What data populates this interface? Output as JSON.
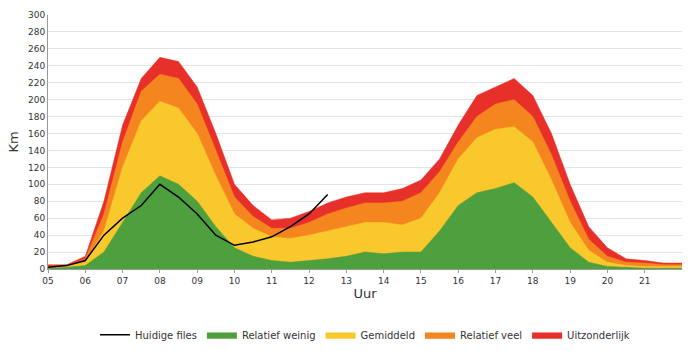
{
  "chart_data": {
    "type": "area",
    "x_label": "Uur",
    "y_label": "Km",
    "x": [
      5,
      5.5,
      6,
      6.5,
      7,
      7.5,
      8,
      8.5,
      9,
      9.5,
      10,
      10.5,
      11,
      11.5,
      12,
      12.5,
      13,
      13.5,
      14,
      14.5,
      15,
      15.5,
      16,
      16.5,
      17,
      17.5,
      18,
      18.5,
      19,
      19.5,
      20,
      20.5,
      21,
      21.5,
      22
    ],
    "xlim": [
      5,
      22
    ],
    "xticks": [
      {
        "value": 5,
        "label": "05"
      },
      {
        "value": 6,
        "label": "06"
      },
      {
        "value": 7,
        "label": "07"
      },
      {
        "value": 8,
        "label": "08"
      },
      {
        "value": 9,
        "label": "09"
      },
      {
        "value": 10,
        "label": "10"
      },
      {
        "value": 11,
        "label": "11"
      },
      {
        "value": 12,
        "label": "12"
      },
      {
        "value": 13,
        "label": "13"
      },
      {
        "value": 14,
        "label": "14"
      },
      {
        "value": 15,
        "label": "15"
      },
      {
        "value": 16,
        "label": "16"
      },
      {
        "value": 17,
        "label": "17"
      },
      {
        "value": 18,
        "label": "18"
      },
      {
        "value": 19,
        "label": "19"
      },
      {
        "value": 20,
        "label": "20"
      },
      {
        "value": 21,
        "label": "21"
      }
    ],
    "ylim": [
      0,
      300
    ],
    "yticks": [
      0,
      20,
      40,
      60,
      80,
      100,
      120,
      140,
      160,
      180,
      200,
      220,
      240,
      260,
      280,
      300
    ],
    "grid": true,
    "legend": "bottom",
    "stacked": false,
    "series": [
      {
        "name": "Huidige files",
        "type": "line",
        "color": "#000000",
        "values": [
          2,
          4,
          10,
          40,
          60,
          75,
          100,
          85,
          65,
          40,
          28,
          32,
          38,
          50,
          65,
          88,
          null,
          null,
          null,
          null,
          null,
          null,
          null,
          null,
          null,
          null,
          null,
          null,
          null,
          null,
          null,
          null,
          null,
          null,
          null
        ]
      },
      {
        "name": "Relatief weinig",
        "type": "area",
        "color": "#4e9f3d",
        "values": [
          1,
          2,
          4,
          20,
          55,
          90,
          110,
          100,
          80,
          50,
          25,
          15,
          10,
          8,
          10,
          12,
          15,
          20,
          18,
          20,
          20,
          45,
          75,
          90,
          95,
          102,
          85,
          55,
          25,
          8,
          3,
          2,
          1,
          1,
          1
        ]
      },
      {
        "name": "Gemiddeld",
        "type": "area",
        "color": "#f9c82d",
        "values": [
          2,
          3,
          8,
          45,
          120,
          175,
          198,
          190,
          160,
          110,
          65,
          48,
          38,
          36,
          40,
          45,
          50,
          55,
          55,
          52,
          60,
          90,
          130,
          155,
          165,
          168,
          150,
          105,
          55,
          22,
          8,
          4,
          3,
          3,
          3
        ]
      },
      {
        "name": "Relatief veel",
        "type": "area",
        "color": "#f5861f",
        "values": [
          3,
          4,
          12,
          65,
          150,
          210,
          230,
          225,
          195,
          140,
          85,
          62,
          48,
          48,
          55,
          65,
          72,
          78,
          78,
          80,
          90,
          115,
          150,
          180,
          195,
          200,
          180,
          135,
          80,
          35,
          15,
          8,
          7,
          5,
          5
        ]
      },
      {
        "name": "Uitzonderlijk",
        "type": "area",
        "color": "#e8302a",
        "values": [
          5,
          5,
          15,
          80,
          170,
          225,
          250,
          245,
          215,
          160,
          100,
          75,
          58,
          60,
          68,
          78,
          85,
          90,
          90,
          95,
          105,
          130,
          170,
          205,
          215,
          225,
          205,
          160,
          100,
          50,
          25,
          12,
          10,
          7,
          7
        ]
      }
    ]
  }
}
